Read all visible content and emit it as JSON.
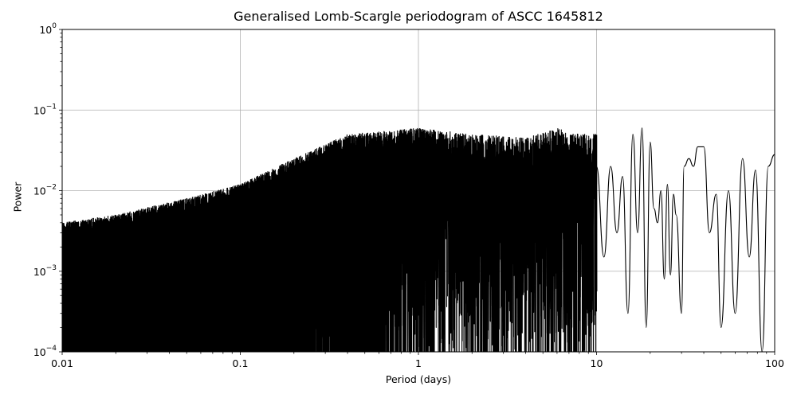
{
  "chart_data": {
    "type": "line",
    "title": "Generalised Lomb-Scargle periodogram of ASCC 1645812",
    "xlabel": "Period (days)",
    "ylabel": "Power",
    "xscale": "log",
    "yscale": "log",
    "xlim": [
      0.01,
      100
    ],
    "ylim": [
      0.0001,
      1
    ],
    "grid": true,
    "x_ticks": [
      {
        "value": 0.01,
        "label": "0.01"
      },
      {
        "value": 0.1,
        "label": "0.1"
      },
      {
        "value": 1,
        "label": "1"
      },
      {
        "value": 10,
        "label": "10"
      },
      {
        "value": 100,
        "label": "100"
      }
    ],
    "y_ticks": [
      {
        "value": 1,
        "base": "10",
        "exp": "0"
      },
      {
        "value": 0.1,
        "base": "10",
        "exp": "−1"
      },
      {
        "value": 0.01,
        "base": "10",
        "exp": "−2"
      },
      {
        "value": 0.001,
        "base": "10",
        "exp": "−3"
      },
      {
        "value": 0.0001,
        "base": "10",
        "exp": "−4"
      }
    ],
    "noise_envelope": {
      "description": "Dense oscillating periodogram; approximate upper envelope of power vs period",
      "period": [
        0.01,
        0.02,
        0.05,
        0.1,
        0.2,
        0.4,
        0.7,
        1.0,
        2.0,
        4.0,
        6.0,
        8.0
      ],
      "max_power": [
        0.004,
        0.005,
        0.008,
        0.012,
        0.025,
        0.05,
        0.055,
        0.06,
        0.05,
        0.045,
        0.06,
        0.05
      ]
    },
    "resolved_peaks": {
      "period": [
        10,
        11,
        12,
        13,
        14,
        15,
        16,
        17,
        18,
        19,
        20,
        21,
        22,
        23,
        24,
        25,
        26,
        27,
        28,
        30,
        31,
        33,
        35,
        37,
        40,
        43,
        47,
        50,
        55,
        60,
        66,
        72,
        78,
        85,
        92,
        100
      ],
      "power": [
        0.02,
        0.0015,
        0.02,
        0.003,
        0.015,
        0.0003,
        0.05,
        0.003,
        0.06,
        0.0002,
        0.04,
        0.006,
        0.004,
        0.01,
        0.0008,
        0.012,
        0.0009,
        0.009,
        0.005,
        0.0003,
        0.02,
        0.025,
        0.02,
        0.035,
        0.035,
        0.003,
        0.009,
        0.0002,
        0.01,
        0.0003,
        0.025,
        0.0015,
        0.018,
        0.0001,
        0.02,
        0.028
      ]
    }
  }
}
